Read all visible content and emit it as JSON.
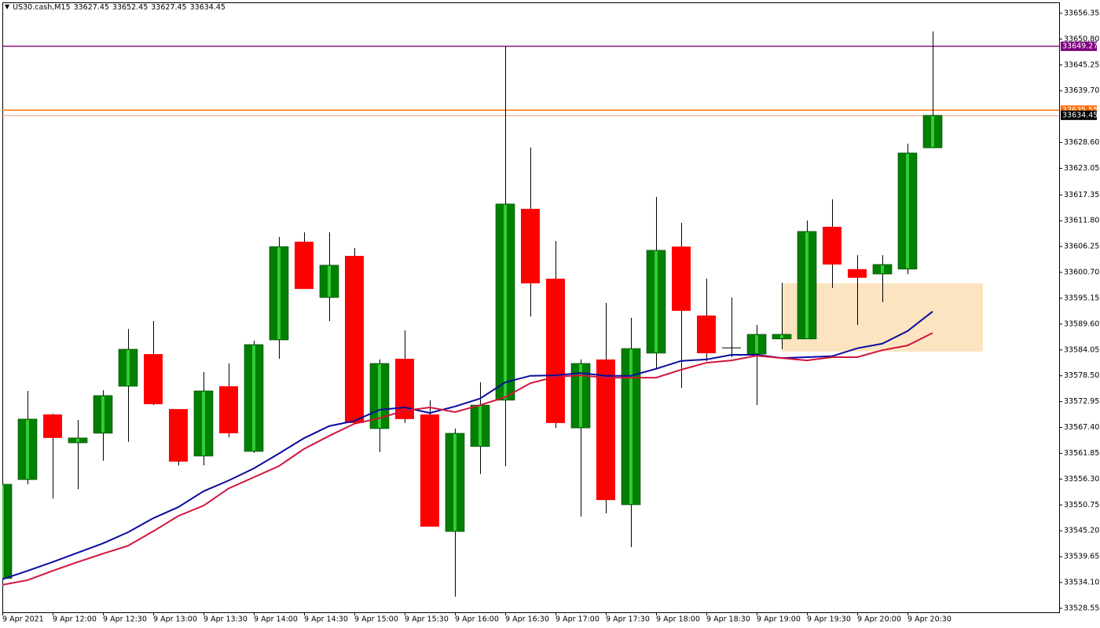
{
  "chart_data": {
    "type": "candlestick",
    "title": "US30.cash,M15",
    "categories": [
      "9 Apr 2021",
      null,
      "9 Apr 12:00",
      null,
      "9 Apr 12:30",
      null,
      "9 Apr 13:00",
      null,
      "9 Apr 13:30",
      null,
      "9 Apr 14:00",
      null,
      "9 Apr 14:30",
      null,
      "9 Apr 15:00",
      null,
      "9 Apr 15:30",
      null,
      "9 Apr 16:00",
      null,
      "9 Apr 16:30",
      null,
      "9 Apr 17:00",
      null,
      "9 Apr 17:30",
      null,
      "9 Apr 18:00",
      null,
      "9 Apr 18:30",
      null,
      "9 Apr 19:00",
      null,
      "9 Apr 19:30",
      null,
      "9 Apr 20:00",
      null,
      "9 Apr 20:30",
      null
    ],
    "open": [
      33534.95,
      33556.2,
      33570.2,
      33564.1,
      33566.15,
      33576.25,
      33583.15,
      33571.35,
      33561.25,
      33576.25,
      33562.25,
      33586.2,
      33607.3,
      33595.3,
      33604.25,
      33567.15,
      33582.15,
      33570.2,
      33545.05,
      33563.3,
      33573.25,
      33614.35,
      33599.35,
      33567.3,
      33582.0,
      33550.8,
      33583.35,
      33606.25,
      33591.45,
      33584.5,
      33583.15,
      33586.4,
      33586.4,
      33610.5,
      33601.4,
      33600.35,
      33601.4,
      33627.45
    ],
    "high": [
      33557.2,
      33575.25,
      33570.35,
      33569.0,
      33575.4,
      33588.55,
      33590.25,
      33571.35,
      33579.3,
      33581.15,
      33586.05,
      33608.3,
      33609.3,
      33609.3,
      33605.95,
      33582.0,
      33588.25,
      33573.25,
      33567.15,
      33577.1,
      33649.25,
      33627.5,
      33607.45,
      33582.0,
      33594.15,
      33590.95,
      33616.9,
      33611.35,
      33599.35,
      33595.3,
      33589.4,
      33598.5,
      33611.85,
      33616.4,
      33604.4,
      33604.4,
      33628.35,
      33652.45
    ],
    "low": [
      33534.45,
      33555.2,
      33552.15,
      33554.15,
      33560.25,
      33564.3,
      33572.2,
      33559.25,
      33559.25,
      33565.3,
      33561.95,
      33582.15,
      33597.15,
      33590.25,
      33568.35,
      33562.1,
      33568.35,
      33546.1,
      33531.05,
      33557.4,
      33559.05,
      33591.25,
      33567.3,
      33548.25,
      33548.95,
      33541.7,
      33579.95,
      33575.9,
      33581.65,
      33582.5,
      33572.2,
      33584.2,
      33586.4,
      33597.35,
      33589.4,
      33594.3,
      33600.35,
      33627.45
    ],
    "close": [
      33555.2,
      33569.2,
      33565.15,
      33565.15,
      33574.25,
      33584.2,
      33572.4,
      33560.05,
      33575.25,
      33566.15,
      33585.2,
      33606.25,
      33597.15,
      33602.25,
      33568.35,
      33581.15,
      33569.2,
      33546.1,
      33566.15,
      33572.2,
      33615.4,
      33598.35,
      33568.35,
      33581.15,
      33551.8,
      33584.35,
      33605.45,
      33592.45,
      33583.35,
      33584.5,
      33587.4,
      33587.4,
      33609.5,
      33602.4,
      33599.55,
      33602.4,
      33626.35,
      33634.45
    ],
    "up_color": "#008000",
    "up_highlight": "#33cc33",
    "down_color": "#ff0000",
    "wick_color": "#000000",
    "moving_averages": [
      {
        "color": "#0a0aa0",
        "values": [
          33534.8,
          33536.6,
          33538.5,
          33540.5,
          33542.5,
          33544.9,
          33547.9,
          33550.3,
          33553.7,
          33556.0,
          33558.6,
          33561.8,
          33565.1,
          33567.7,
          33568.8,
          33571.2,
          33571.7,
          33570.5,
          33571.9,
          33573.6,
          33577.1,
          33578.5,
          33578.6,
          33579.1,
          33578.5,
          33578.5,
          33580.0,
          33581.7,
          33582.0,
          33583.0,
          33583.0,
          33582.3,
          33582.5,
          33582.7,
          33584.4,
          33585.4,
          33588.1,
          33592.3
        ]
      },
      {
        "color": "#d2143c",
        "values": [
          33533.6,
          33534.6,
          33536.6,
          33538.5,
          33540.3,
          33542.0,
          33545.1,
          33548.4,
          33550.6,
          33554.3,
          33556.7,
          33559.1,
          33562.8,
          33565.6,
          33568.2,
          33569.4,
          33571.0,
          33571.7,
          33570.7,
          33572.2,
          33573.9,
          33576.9,
          33578.3,
          33578.6,
          33578.1,
          33578.1,
          33578.1,
          33579.8,
          33581.3,
          33581.8,
          33582.8,
          33582.3,
          33581.8,
          33582.5,
          33582.5,
          33584.0,
          33585.0,
          33587.7
        ]
      }
    ],
    "zone": {
      "from": 33583.7,
      "to": 33598.35,
      "color": "#fde4c0"
    },
    "hlines": [
      {
        "value": 33649.27,
        "color": "#800080"
      },
      {
        "value": 33635.55,
        "color": "#ff6a00"
      }
    ],
    "price_line_color": "#f0a070",
    "ylim": [
      33527.7,
      33658.7
    ],
    "yticks": [
      33656.35,
      {
        "value": 33650.8,
        "label": "33650.80"
      },
      33645.25,
      {
        "value": 33639.7,
        "label": "33639.70"
      },
      {
        "value": 33628.6,
        "label": "33628.60"
      },
      33623.05,
      33617.35,
      {
        "value": 33611.8,
        "label": "33611.80"
      },
      33606.25,
      {
        "value": 33600.7,
        "label": "33600.70"
      },
      33595.15,
      {
        "value": 33589.6,
        "label": "33589.60"
      },
      33584.05,
      {
        "value": 33578.5,
        "label": "33578.50"
      },
      33572.95,
      {
        "value": 33567.4,
        "label": "33567.40"
      },
      33561.85,
      {
        "value": 33556.3,
        "label": "33556.30"
      },
      33550.75,
      {
        "value": 33545.2,
        "label": "33545.20"
      },
      33539.65,
      {
        "value": 33534.1,
        "label": "33534.10"
      },
      33528.55
    ]
  }
}
